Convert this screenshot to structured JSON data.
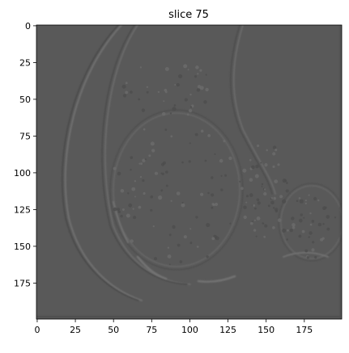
{
  "figure": {
    "title": "slice 75",
    "image": {
      "description_kind": "grayscale-slice",
      "colormap": "gray",
      "x_range": [
        0,
        199
      ],
      "y_range": [
        0,
        199
      ],
      "background_gray": "#595959"
    },
    "axes": {
      "x_ticks": [
        {
          "value": 0,
          "label": "0"
        },
        {
          "value": 25,
          "label": "25"
        },
        {
          "value": 50,
          "label": "50"
        },
        {
          "value": 75,
          "label": "75"
        },
        {
          "value": 100,
          "label": "100"
        },
        {
          "value": 125,
          "label": "125"
        },
        {
          "value": 150,
          "label": "150"
        },
        {
          "value": 175,
          "label": "175"
        }
      ],
      "y_ticks": [
        {
          "value": 0,
          "label": "0"
        },
        {
          "value": 25,
          "label": "25"
        },
        {
          "value": 50,
          "label": "50"
        },
        {
          "value": 75,
          "label": "75"
        },
        {
          "value": 100,
          "label": "100"
        },
        {
          "value": 125,
          "label": "125"
        },
        {
          "value": 150,
          "label": "150"
        },
        {
          "value": 175,
          "label": "175"
        }
      ]
    }
  }
}
